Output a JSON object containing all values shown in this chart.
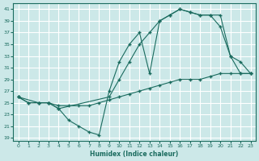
{
  "xlabel": "Humidex (Indice chaleur)",
  "xlim": [
    -0.5,
    23.5
  ],
  "ylim": [
    18.5,
    42
  ],
  "yticks": [
    19,
    21,
    23,
    25,
    27,
    29,
    31,
    33,
    35,
    37,
    39,
    41
  ],
  "xticks": [
    0,
    1,
    2,
    3,
    4,
    5,
    6,
    7,
    8,
    9,
    10,
    11,
    12,
    13,
    14,
    15,
    16,
    17,
    18,
    19,
    20,
    21,
    22,
    23
  ],
  "bg_color": "#cce8e8",
  "line_color": "#1a6b5e",
  "grid_color": "#ffffff",
  "line1_x": [
    0,
    1,
    2,
    3,
    4,
    5,
    6,
    7,
    8,
    9,
    10,
    11,
    12,
    13,
    14,
    15,
    16,
    17,
    18,
    19,
    20,
    21,
    22,
    23
  ],
  "line1_y": [
    26,
    25,
    25,
    25,
    24.5,
    24.5,
    24.5,
    24.5,
    25,
    25.5,
    26,
    26.5,
    27,
    27.5,
    28,
    28.5,
    29,
    29,
    29,
    29.5,
    30,
    30,
    30,
    30
  ],
  "line2_x": [
    0,
    2,
    3,
    4,
    5,
    6,
    7,
    8,
    9,
    10,
    11,
    12,
    13,
    14,
    15,
    16,
    17,
    18,
    19,
    20,
    21,
    22,
    23
  ],
  "line2_y": [
    26,
    25,
    25,
    24,
    22,
    21,
    20,
    19.5,
    27,
    32,
    35,
    37,
    30,
    39,
    40,
    41,
    40.5,
    40,
    40,
    38,
    33,
    32,
    30
  ],
  "line3_x": [
    0,
    1,
    2,
    3,
    4,
    9,
    10,
    11,
    12,
    13,
    14,
    15,
    16,
    17,
    18,
    19,
    20,
    21,
    22,
    23
  ],
  "line3_y": [
    26,
    25,
    25,
    25,
    24,
    26,
    29,
    32,
    35,
    37,
    39,
    40,
    41,
    40.5,
    40,
    40,
    40,
    33,
    30,
    30
  ]
}
